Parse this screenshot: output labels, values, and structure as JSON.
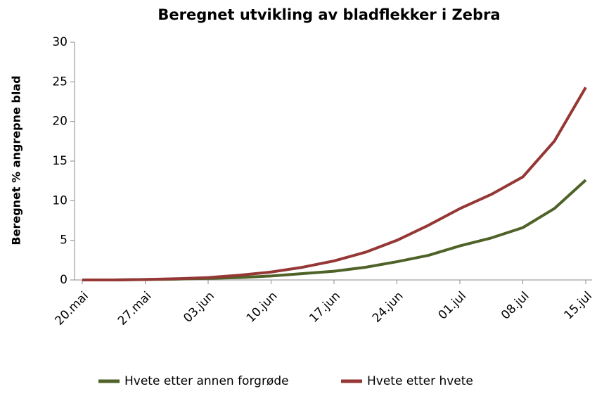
{
  "chart_data": {
    "type": "line",
    "title": "Beregnet utvikling av bladflekker i Zebra",
    "y_label": "Beregnet % angrepne blad",
    "categories": [
      "20.mai",
      null,
      "27.mai",
      null,
      "03.jun",
      null,
      "10.jun",
      null,
      "17.jun",
      null,
      "24.jun",
      null,
      "01.jul",
      null,
      "08.jul",
      null,
      "15.jul"
    ],
    "series": [
      {
        "name": "Hvete etter annen forgrøde",
        "color": "#4f6228",
        "values": [
          0,
          0,
          0.05,
          0.1,
          0.2,
          0.3,
          0.5,
          0.8,
          1.1,
          1.6,
          2.3,
          3.1,
          4.3,
          5.3,
          6.6,
          9,
          12.6
        ]
      },
      {
        "name": "Hvete etter hvete",
        "color": "#953735",
        "values": [
          0,
          0,
          0.05,
          0.15,
          0.3,
          0.6,
          1.0,
          1.6,
          2.4,
          3.5,
          5.0,
          6.9,
          9.0,
          10.8,
          13.0,
          17.5,
          24.3
        ]
      }
    ],
    "ylim": [
      0,
      30
    ],
    "yticks": [
      0,
      5,
      10,
      15,
      20,
      25,
      30
    ],
    "legend": "bottom"
  }
}
